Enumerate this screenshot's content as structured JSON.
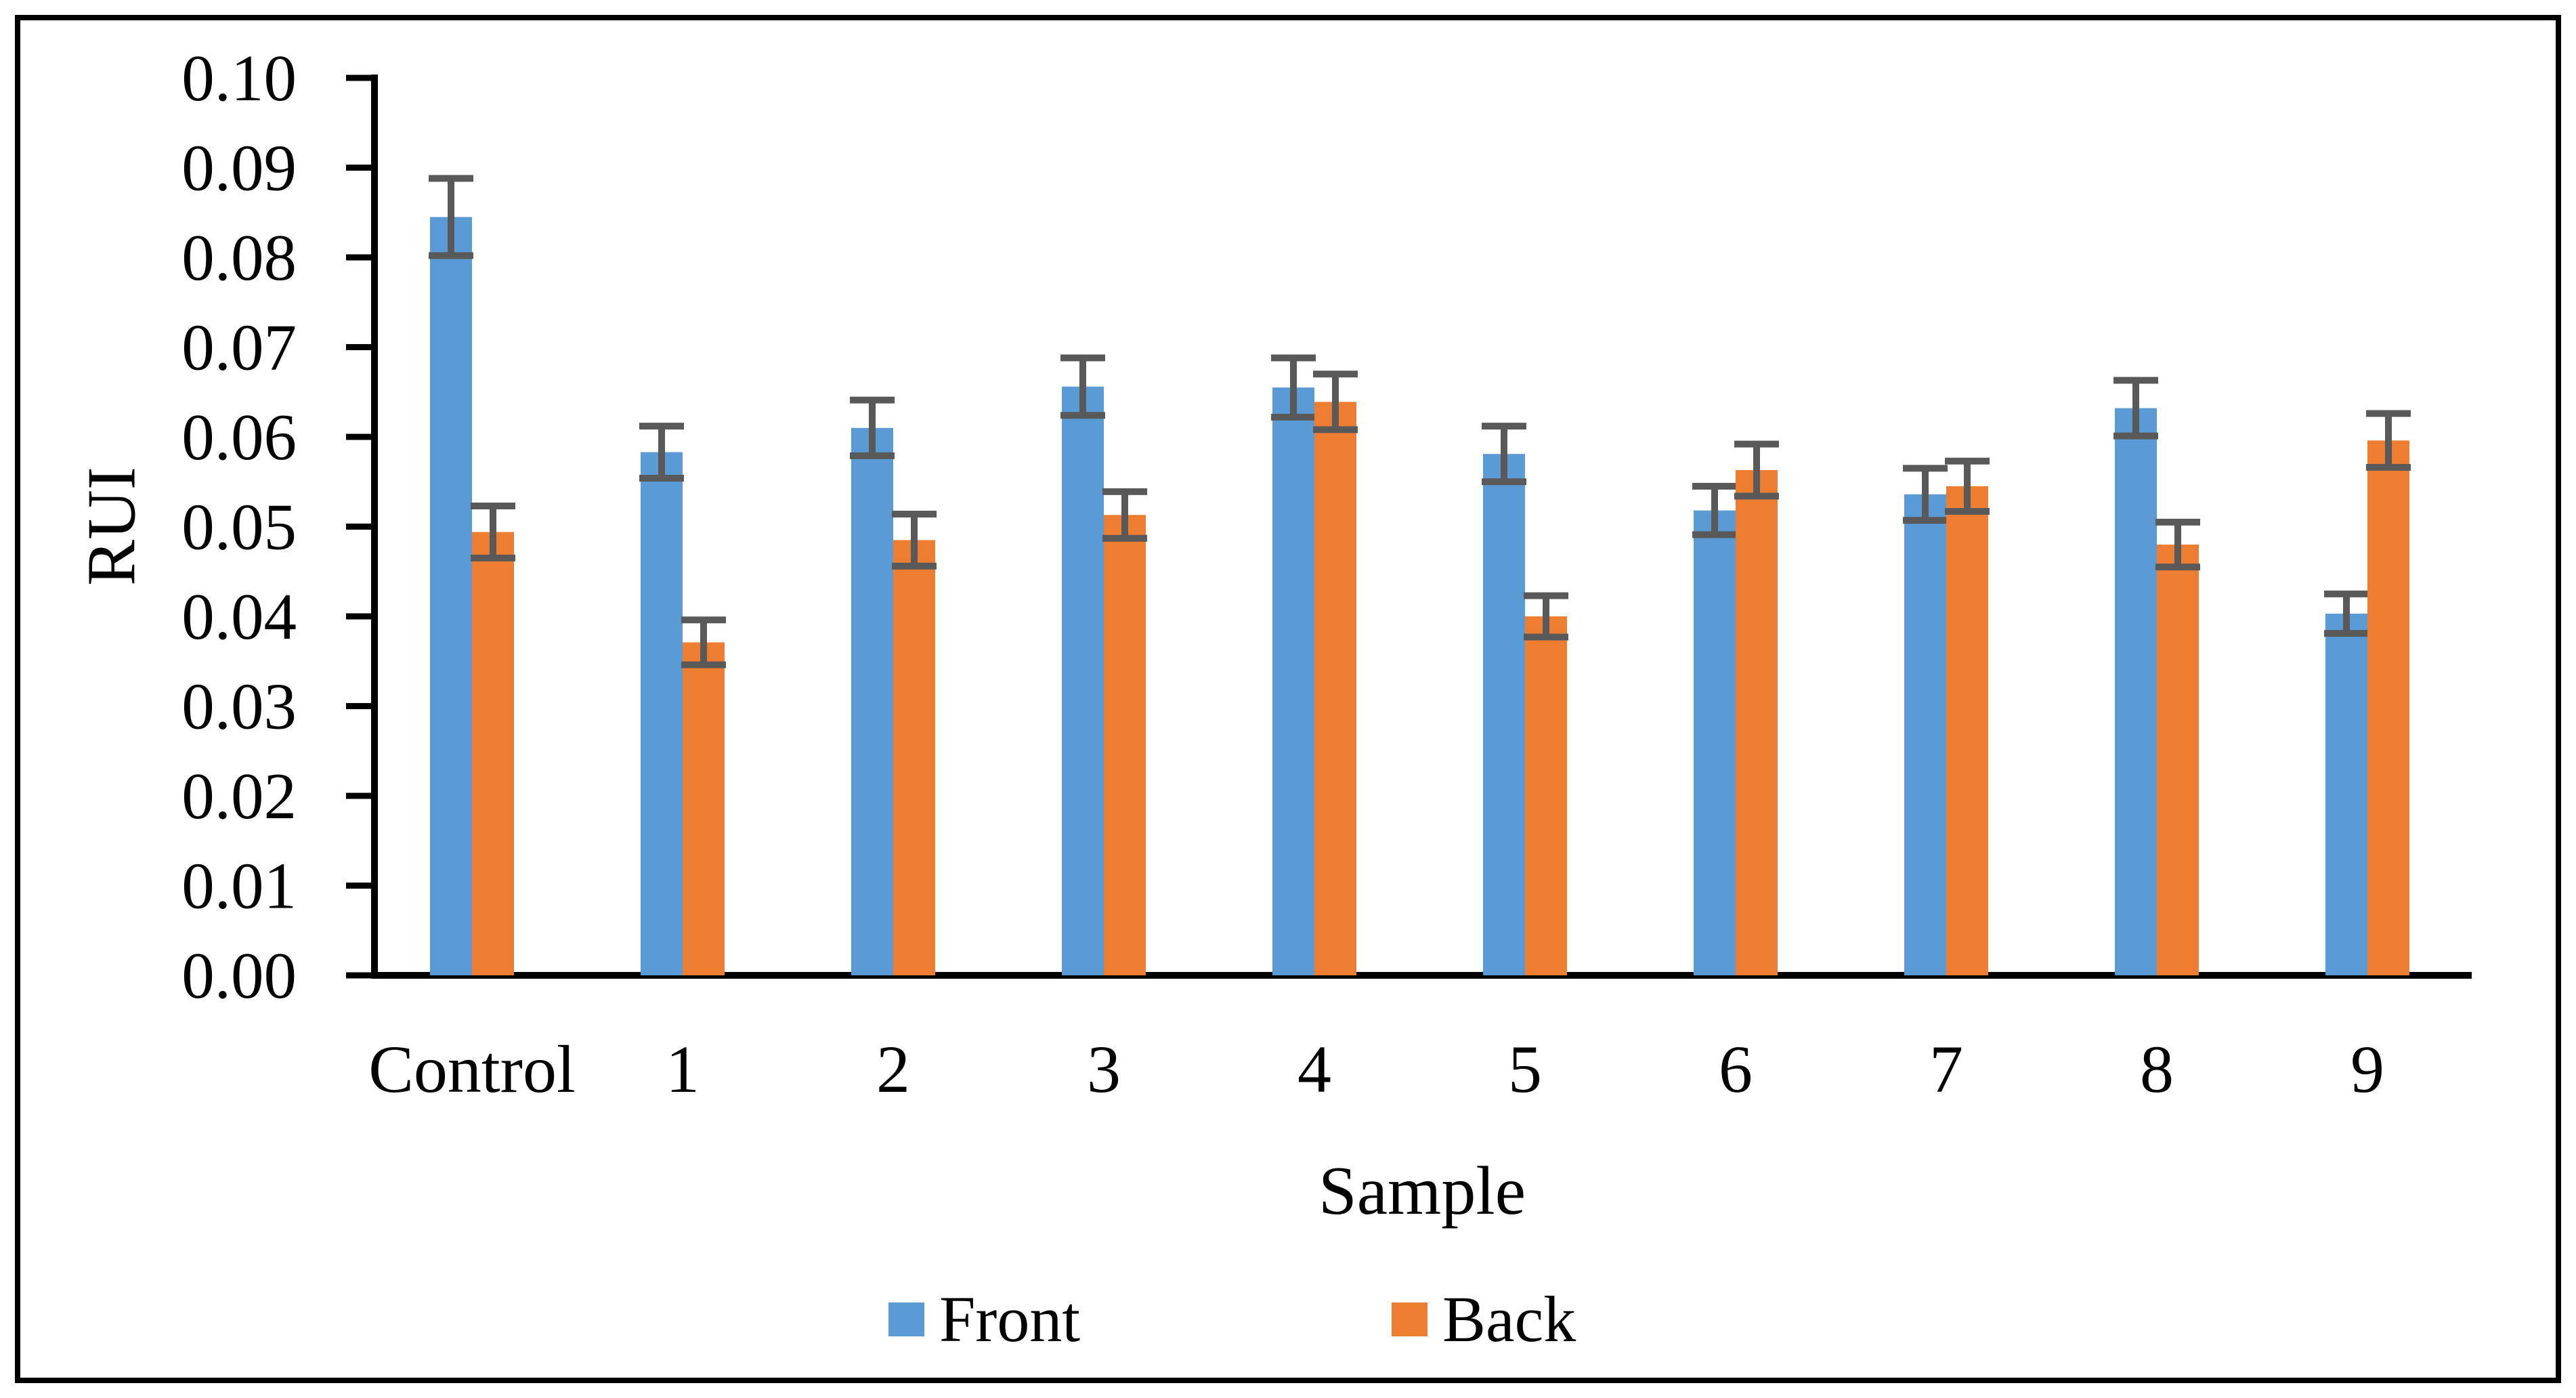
{
  "figure": {
    "background": "#ffffff",
    "border_color": "#000000"
  },
  "chart_data": {
    "type": "bar",
    "title": "",
    "xlabel": "Sample",
    "ylabel": "RUI",
    "categories": [
      "Control",
      "1",
      "2",
      "3",
      "4",
      "5",
      "6",
      "7",
      "8",
      "9"
    ],
    "series": [
      {
        "name": "Front",
        "color": "#5B9BD5",
        "values": [
          0.0845,
          0.0583,
          0.061,
          0.0656,
          0.0655,
          0.0581,
          0.0518,
          0.0536,
          0.0632,
          0.0403
        ],
        "errors": [
          0.0043,
          0.0029,
          0.0031,
          0.0032,
          0.0033,
          0.0031,
          0.0027,
          0.0029,
          0.0031,
          0.0022
        ]
      },
      {
        "name": "Back",
        "color": "#ED7D31",
        "values": [
          0.0494,
          0.0371,
          0.0485,
          0.0513,
          0.0639,
          0.04,
          0.0563,
          0.0545,
          0.048,
          0.0596
        ],
        "errors": [
          0.0029,
          0.0025,
          0.0029,
          0.0026,
          0.0031,
          0.0023,
          0.0029,
          0.0028,
          0.0025,
          0.003
        ]
      }
    ],
    "ylim": [
      0,
      0.1
    ],
    "ytick_step": 0.01,
    "ytick_decimals": 2,
    "ytick_labels": [
      "0.00",
      "0.01",
      "0.02",
      "0.03",
      "0.04",
      "0.05",
      "0.06",
      "0.07",
      "0.08",
      "0.09",
      "0.10"
    ],
    "grid": false,
    "legend_position": "bottom",
    "error_bar_color": "#595959",
    "axis_color": "#000000",
    "text_color": "#000000"
  }
}
